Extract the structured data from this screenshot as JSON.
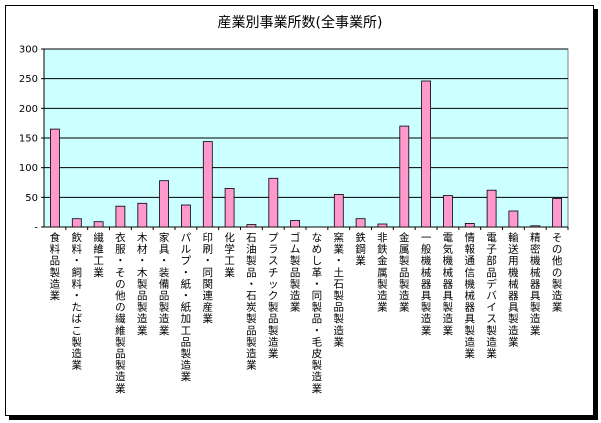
{
  "chart_data": {
    "type": "bar",
    "title": "産業別事業所数(全事業所)",
    "xlabel": "",
    "ylabel": "",
    "ylim": [
      0,
      300
    ],
    "yticks": [
      "300",
      "250",
      "200",
      "150",
      "100",
      "50",
      "-"
    ],
    "grid": true,
    "categories": [
      "食料品製造業",
      "飲料・飼料・たばこ製造業",
      "繊維工業",
      "衣服・その他の繊維製品製造業",
      "木材・木製品製造業",
      "家具・装備品製造業",
      "パルプ・紙・紙加工品製造業",
      "印刷・同関連産業",
      "化学工業",
      "石油製品・石炭製品製造業",
      "プラスチック製品製造業",
      "ゴム製品製造業",
      "なめし革・同製品・毛皮製造業",
      "窯業・土石製品製造業",
      "鉄鋼業",
      "非鉄金属製造業",
      "金属製品製造業",
      "一般機械器具製造業",
      "電気機械器具製造業",
      "情報通信機械器具製造業",
      "電子部品デバイス製造業",
      "輸送用機械器具製造業",
      "精密機械器具製造業",
      "その他の製造業"
    ],
    "values": [
      165,
      14,
      9,
      35,
      40,
      78,
      37,
      144,
      65,
      4,
      82,
      11,
      0,
      55,
      14,
      5,
      170,
      246,
      53,
      6,
      62,
      27,
      2,
      48
    ],
    "colors": {
      "plot_bg": "#CCFFFF",
      "bar_fill": "#FF99CC",
      "bar_stroke": "#000000",
      "grid": "#000000"
    }
  }
}
